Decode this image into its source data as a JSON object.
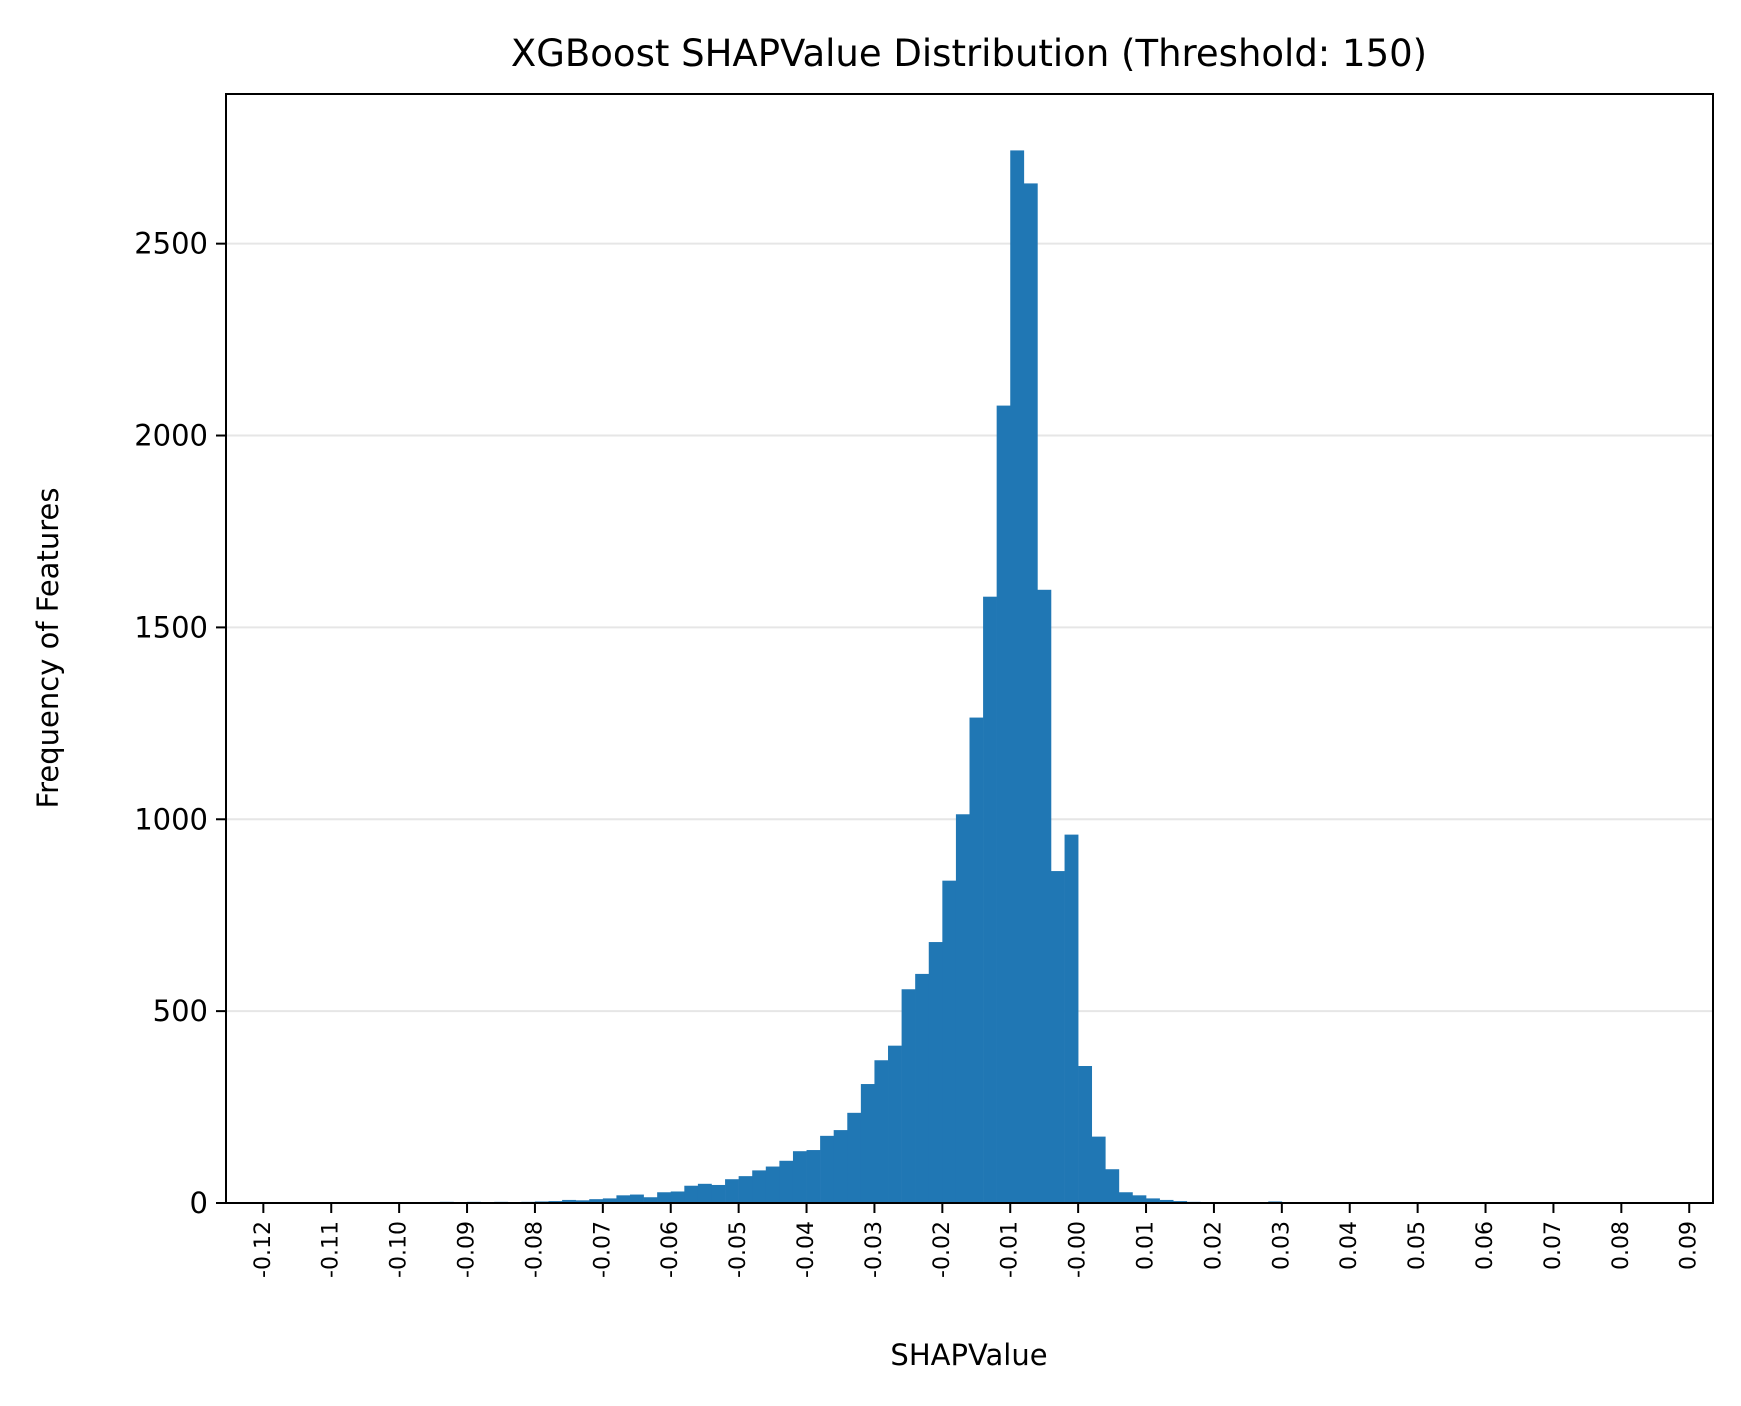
{
  "chart_data": {
    "type": "bar",
    "title": "XGBoost SHAPValue Distribution (Threshold: 150)",
    "xlabel": "SHAPValue",
    "ylabel": "Frequency of Features",
    "xlim": [
      -0.1255,
      0.0935
    ],
    "ylim": [
      0,
      2890
    ],
    "bin_width": 0.002,
    "bins_start": -0.094,
    "values": [
      3,
      2,
      3,
      2,
      3,
      2,
      3,
      4,
      5,
      8,
      7,
      10,
      12,
      20,
      22,
      15,
      28,
      30,
      45,
      50,
      47,
      62,
      70,
      85,
      95,
      110,
      135,
      138,
      175,
      190,
      235,
      310,
      372,
      410,
      557,
      597,
      680,
      840,
      1013,
      1265,
      1580,
      2078,
      2743,
      2657,
      1598,
      865,
      960,
      357,
      173,
      88,
      28,
      20,
      12,
      8,
      5,
      3,
      2,
      2,
      0,
      1,
      2,
      4,
      2,
      1
    ],
    "xticks": [
      -0.12,
      -0.11,
      -0.1,
      -0.09,
      -0.08,
      -0.07,
      -0.06,
      -0.05,
      -0.04,
      -0.03,
      -0.02,
      -0.01,
      0.0,
      0.01,
      0.02,
      0.03,
      0.04,
      0.05,
      0.06,
      0.07,
      0.08,
      0.09
    ],
    "xtick_labels": [
      "-0.12",
      "-0.11",
      "-0.10",
      "-0.09",
      "-0.08",
      "-0.07",
      "-0.06",
      "-0.05",
      "-0.04",
      "-0.03",
      "-0.02",
      "-0.01",
      "-0.00",
      "0.01",
      "0.02",
      "0.03",
      "0.04",
      "0.05",
      "0.06",
      "0.07",
      "0.08",
      "0.09"
    ],
    "yticks": [
      0,
      500,
      1000,
      1500,
      2000,
      2500
    ],
    "ytick_labels": [
      "0",
      "500",
      "1000",
      "1500",
      "2000",
      "2500"
    ],
    "grid": "y",
    "bar_color": "#2077b4",
    "grid_color": "#e6e6e6"
  }
}
